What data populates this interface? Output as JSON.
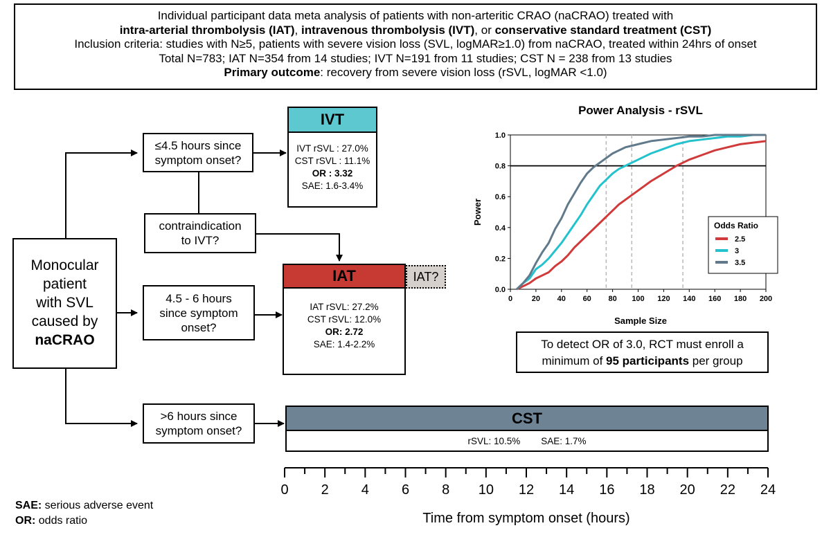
{
  "header": {
    "line1": "Individual participant data meta analysis of patients with non-arteritic CRAO (naCRAO) treated with",
    "line2_a": "intra-arterial thrombolysis (IAT)",
    "line2_sep1": ", ",
    "line2_b": "intravenous thrombolysis (IVT)",
    "line2_sep2": ", or ",
    "line2_c": "conservative standard treatment (CST)",
    "line3": "Inclusion criteria: studies with N≥5, patients with severe vision loss (SVL, logMAR≥1.0) from naCRAO, treated within 24hrs of onset",
    "line4": "Total N=783; IAT N=354 from 14 studies; IVT N=191 from 11 studies; CST N = 238 from 13 studies",
    "line5_bold": "Primary outcome",
    "line5_rest": ": recovery from severe vision loss (rSVL, logMAR <1.0)"
  },
  "patient": {
    "line1": "Monocular",
    "line2": "patient",
    "line3": "with SVL",
    "line4": "caused by",
    "line5": "naCRAO"
  },
  "questions": {
    "q1_l1": "≤4.5 hours since",
    "q1_l2": "symptom onset?",
    "q2_l1": "contraindication",
    "q2_l2": "to IVT?",
    "q3_l1": "4.5 - 6 hours",
    "q3_l2": "since symptom",
    "q3_l3": "onset?",
    "q4_l1": ">6 hours since",
    "q4_l2": "symptom onset?"
  },
  "ivt": {
    "title": "IVT",
    "r1": "IVT rSVL : 27.0%",
    "r2": "CST rSVL : 11.1%",
    "r3": "OR : 3.32",
    "r4": "SAE: 1.6-3.4%"
  },
  "iat": {
    "title": "IAT",
    "q": "IAT?",
    "r1": "IAT rSVL: 27.2%",
    "r2": "CST rSVL: 12.0%",
    "r3": "OR: 2.72",
    "r4": "SAE: 1.4-2.2%"
  },
  "cst": {
    "title": "CST",
    "r1": "rSVL: 10.5%",
    "r2": "SAE: 1.7%"
  },
  "timeline": {
    "ticks": [
      "0",
      "2",
      "4",
      "6",
      "8",
      "10",
      "12",
      "14",
      "16",
      "18",
      "20",
      "22",
      "24"
    ],
    "label": "Time from symptom onset (hours)"
  },
  "footnote": {
    "sae_k": "SAE:",
    "sae_v": " serious adverse event",
    "or_k": "OR:",
    "or_v": " odds ratio"
  },
  "power": {
    "note_l1": "To detect OR of 3.0, RCT must enroll a",
    "note_l2_a": "minimum of ",
    "note_l2_b": "95 participants",
    "note_l2_c": " per group"
  },
  "colors": {
    "ivt": "#5ec8d0",
    "iat": "#c63a33",
    "cst": "#6e8494",
    "iat_q": "#d6d0cc"
  },
  "chart_data": {
    "type": "line",
    "title": "Power Analysis - rSVL",
    "xlabel": "Sample Size",
    "ylabel": "Power",
    "xlim": [
      5,
      200
    ],
    "ylim": [
      0,
      1.0
    ],
    "xticks": [
      "0",
      "20",
      "40",
      "60",
      "80",
      "100",
      "120",
      "140",
      "160",
      "180",
      "200"
    ],
    "yticks": [
      "0.0",
      "0.2",
      "0.4",
      "0.6",
      "0.8",
      "1.0"
    ],
    "threshold": 0.8,
    "vlines": [
      75,
      95,
      135
    ],
    "legend_title": "Odds Ratio",
    "legend_position": "right",
    "x": [
      5,
      10,
      15,
      20,
      25,
      30,
      35,
      40,
      45,
      50,
      55,
      60,
      65,
      70,
      75,
      80,
      85,
      90,
      95,
      100,
      110,
      120,
      130,
      140,
      150,
      160,
      170,
      180,
      190,
      200
    ],
    "series": [
      {
        "name": "2.5",
        "color": "#d13a3a",
        "values": [
          0,
          0.02,
          0.04,
          0.07,
          0.09,
          0.11,
          0.15,
          0.18,
          0.22,
          0.27,
          0.31,
          0.35,
          0.39,
          0.43,
          0.47,
          0.51,
          0.55,
          0.58,
          0.61,
          0.64,
          0.7,
          0.75,
          0.8,
          0.84,
          0.87,
          0.9,
          0.92,
          0.94,
          0.95,
          0.96
        ]
      },
      {
        "name": "3",
        "color": "#24c2cc",
        "values": [
          0,
          0.04,
          0.07,
          0.13,
          0.16,
          0.2,
          0.25,
          0.3,
          0.36,
          0.42,
          0.48,
          0.55,
          0.61,
          0.67,
          0.71,
          0.75,
          0.78,
          0.8,
          0.82,
          0.84,
          0.88,
          0.91,
          0.94,
          0.96,
          0.97,
          0.98,
          0.99,
          0.99,
          1.0,
          1.0
        ]
      },
      {
        "name": "3.5",
        "color": "#617a8b",
        "values": [
          0,
          0.04,
          0.09,
          0.17,
          0.24,
          0.3,
          0.39,
          0.46,
          0.55,
          0.62,
          0.69,
          0.75,
          0.79,
          0.82,
          0.85,
          0.88,
          0.9,
          0.92,
          0.93,
          0.94,
          0.96,
          0.97,
          0.98,
          0.99,
          0.99,
          1.0,
          1.0,
          1.0,
          1.0,
          1.0
        ]
      }
    ]
  }
}
